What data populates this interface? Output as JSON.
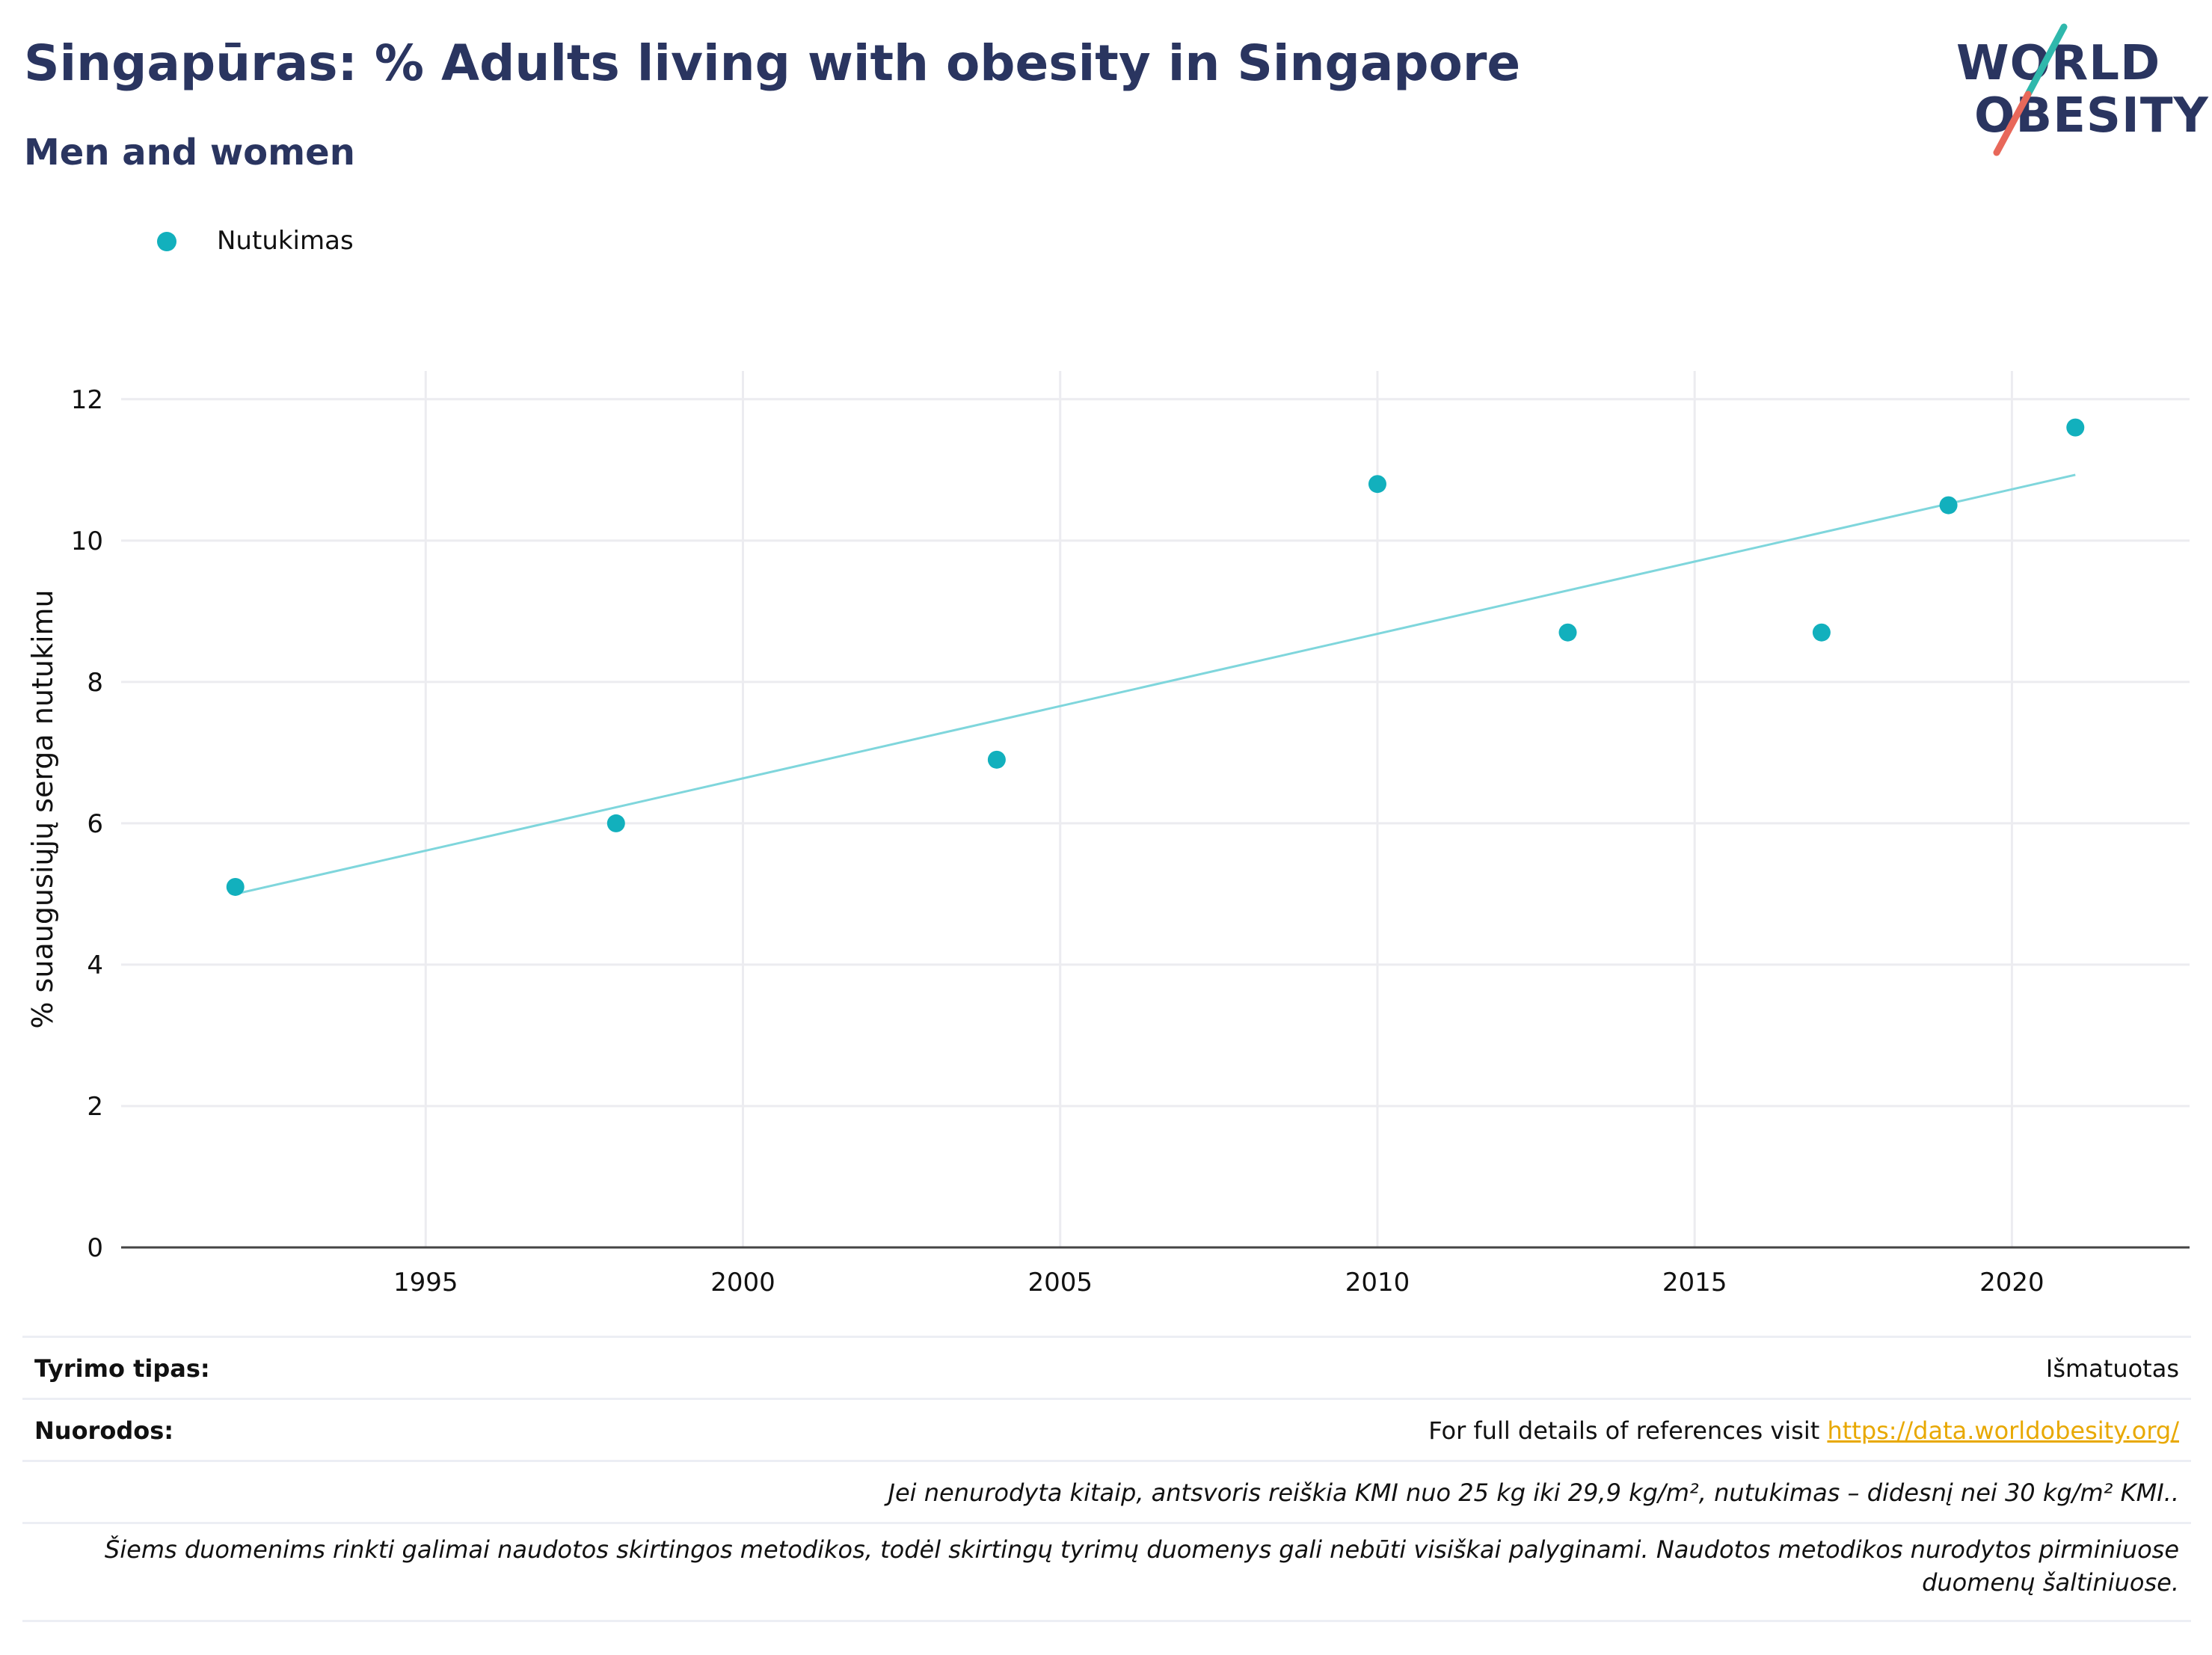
{
  "header": {
    "title": "Singapūras: % Adults living with obesity in Singapore",
    "subtitle": "Men and women"
  },
  "logo": {
    "line1": "WORLD",
    "line2": "OBESITY"
  },
  "colors": {
    "accent": "#12b0bd",
    "trend": "#7fd6dc",
    "title": "#2a3560",
    "link": "#e8a800"
  },
  "chart_data": {
    "type": "scatter",
    "ylabel": "% suaugusiųjų serga nutukimu",
    "xlabel": "",
    "xlim": [
      1990.2,
      2022.8
    ],
    "ylim": [
      0,
      12.4
    ],
    "x_ticks": [
      1995,
      2000,
      2005,
      2010,
      2015,
      2020
    ],
    "y_ticks": [
      0,
      2,
      4,
      6,
      8,
      10,
      12
    ],
    "grid": true,
    "legend_position": "top-left",
    "series": [
      {
        "name": "Nutukimas",
        "color": "#12b0bd",
        "x": [
          1992,
          1998,
          2004,
          2010,
          2013,
          2017,
          2019,
          2021
        ],
        "y": [
          5.1,
          6.0,
          6.9,
          10.8,
          8.7,
          8.7,
          10.5,
          11.6
        ]
      }
    ],
    "trendline": {
      "x": [
        1992,
        2021
      ],
      "y": [
        5.0,
        10.93
      ],
      "color": "#7fd6dc"
    }
  },
  "info": {
    "study_type_label": "Tyrimo tipas:",
    "study_type_value": "Išmatuotas",
    "references_label": "Nuorodos:",
    "references_text": "For full details of references visit ",
    "references_link": "https://data.worldobesity.org/",
    "note1": "Jei nenurodyta kitaip, antsvoris reiškia KMI nuo 25 kg iki 29,9 kg/m², nutukimas – didesnį nei 30 kg/m² KMI..",
    "note2": "Šiems duomenims rinkti galimai naudotos skirtingos metodikos, todėl skirtingų tyrimų duomenys gali nebūti visiškai palyginami. Naudotos metodikos nurodytos pirminiuose duomenų šaltiniuose."
  }
}
